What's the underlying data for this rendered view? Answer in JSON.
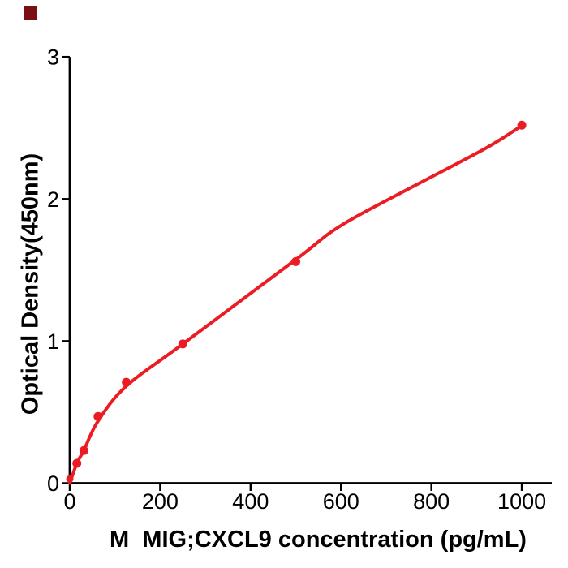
{
  "figure": {
    "background": "#ffffff",
    "watermark_square_color": "#7a1014"
  },
  "chart_data": {
    "type": "scatter",
    "title": "",
    "xlabel": "M  MIG;CXCL9 concentration (pg/mL)",
    "ylabel": "Optical Density(450nm)",
    "x_ticks": [
      0,
      200,
      400,
      600,
      800,
      1000
    ],
    "y_ticks": [
      0,
      1,
      2,
      3
    ],
    "xlim": [
      0,
      1066
    ],
    "ylim": [
      0,
      3
    ],
    "grid": false,
    "legend": false,
    "axis_color": "#000000",
    "marker_color": "#ec1c24",
    "line_color": "#ec1c24",
    "series": [
      {
        "name": "standard-curve-points",
        "x": [
          0,
          15.625,
          31.25,
          62.5,
          125,
          250,
          500,
          1000
        ],
        "y": [
          0.03,
          0.14,
          0.23,
          0.47,
          0.71,
          0.98,
          1.56,
          2.52
        ]
      }
    ],
    "fit_curve": [
      [
        0,
        0
      ],
      [
        15.625,
        0.14
      ],
      [
        31.25,
        0.232
      ],
      [
        62.5,
        0.437
      ],
      [
        125,
        0.683
      ],
      [
        250,
        0.98
      ],
      [
        500,
        1.574
      ],
      [
        600,
        1.814
      ],
      [
        760,
        2.089
      ],
      [
        920,
        2.357
      ],
      [
        1000,
        2.517
      ]
    ]
  }
}
